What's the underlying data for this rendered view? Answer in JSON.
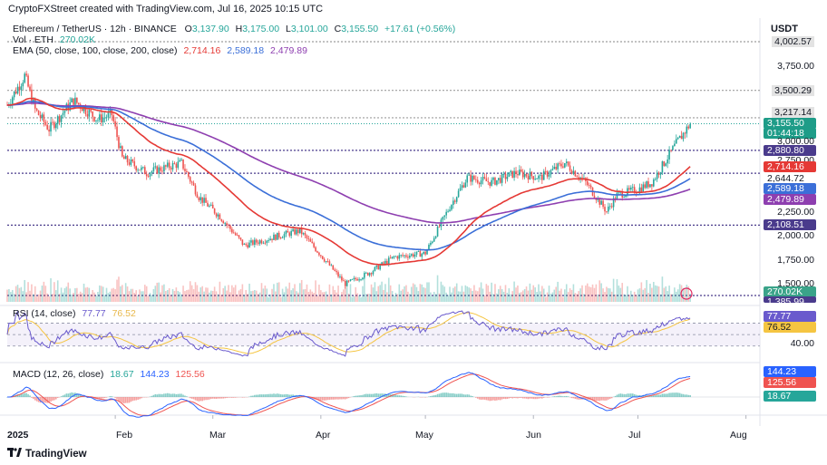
{
  "caption": "CryptoFXStreet created with TradingView.com, Jul 16, 2025 10:15 UTC",
  "currency": "USDT",
  "symbol": {
    "name": "Ethereum / TetherUS · 12h · BINANCE",
    "open_label": "O",
    "open": "3,137.90",
    "high_label": "H",
    "high": "3,175.00",
    "low_label": "L",
    "low": "3,101.00",
    "close_label": "C",
    "close": "3,155.50",
    "change": "+17.61 (+0.56%)"
  },
  "volume": {
    "label": "Vol · ETH",
    "value": "270.02K"
  },
  "ema": {
    "label": "EMA (50, close, 100, close, 200, close)",
    "v50": "2,714.16",
    "v100": "2,589.18",
    "v200": "2,479.89"
  },
  "rsi": {
    "label": "RSI (14, close)",
    "value": "77.77",
    "ma": "76.52"
  },
  "macd": {
    "label": "MACD (12, 26, close)",
    "hist": "18.67",
    "macd": "144.23",
    "signal": "125.56"
  },
  "price_axis": [
    "4,002.57",
    "3,750.00",
    "3,500.29",
    "3,217.14",
    "3,155.50",
    "01:44:18",
    "3,000.00",
    "2,880.80",
    "2,750.00",
    "2,714.16",
    "2,644.72",
    "2,589.18",
    "2,479.89",
    "2,250.00",
    "2,108.51",
    "2,000.00",
    "1,750.00",
    "1,500.00",
    "270.02K",
    "1,385.99"
  ],
  "rsi_axis": [
    "77.77",
    "76.52",
    "40.00"
  ],
  "macd_axis": [
    "144.23",
    "125.56",
    "18.67"
  ],
  "months": [
    "2025",
    "Feb",
    "Mar",
    "Apr",
    "May",
    "Jun",
    "Jul",
    "Aug"
  ],
  "brand": "TradingView",
  "colors": {
    "up": "#26a69a",
    "down": "#ef5350",
    "ema50": "#e53935",
    "ema100": "#3b6fd8",
    "ema200": "#8e3fb0",
    "level": "#4a3b8c",
    "rsi": "#6a5acd",
    "macd": "#2962ff",
    "signal": "#ef5350"
  },
  "chart_data": [
    {
      "type": "candlestick",
      "title": "Ethereum / TetherUS · 12h · BINANCE",
      "x_range": [
        "2025-01-01",
        "2025-07-16"
      ],
      "ylim": [
        1385.99,
        4002.57
      ],
      "horizontal_levels": [
        4002.57,
        3500.29,
        3217.14,
        2880.8,
        2644.72,
        2108.51
      ],
      "close_path": [
        {
          "x": "2025-01-01",
          "y": 3350
        },
        {
          "x": "2025-01-06",
          "y": 3650
        },
        {
          "x": "2025-01-09",
          "y": 3300
        },
        {
          "x": "2025-01-13",
          "y": 3100
        },
        {
          "x": "2025-01-20",
          "y": 3400
        },
        {
          "x": "2025-01-27",
          "y": 3200
        },
        {
          "x": "2025-01-31",
          "y": 3250
        },
        {
          "x": "2025-02-03",
          "y": 2800
        },
        {
          "x": "2025-02-10",
          "y": 2650
        },
        {
          "x": "2025-02-20",
          "y": 2750
        },
        {
          "x": "2025-02-25",
          "y": 2400
        },
        {
          "x": "2025-03-03",
          "y": 2200
        },
        {
          "x": "2025-03-10",
          "y": 1900
        },
        {
          "x": "2025-03-20",
          "y": 2000
        },
        {
          "x": "2025-03-26",
          "y": 2050
        },
        {
          "x": "2025-04-01",
          "y": 1800
        },
        {
          "x": "2025-04-08",
          "y": 1500
        },
        {
          "x": "2025-04-15",
          "y": 1620
        },
        {
          "x": "2025-04-22",
          "y": 1780
        },
        {
          "x": "2025-05-01",
          "y": 1820
        },
        {
          "x": "2025-05-08",
          "y": 2300
        },
        {
          "x": "2025-05-13",
          "y": 2600
        },
        {
          "x": "2025-05-20",
          "y": 2550
        },
        {
          "x": "2025-05-27",
          "y": 2650
        },
        {
          "x": "2025-06-03",
          "y": 2600
        },
        {
          "x": "2025-06-10",
          "y": 2750
        },
        {
          "x": "2025-06-16",
          "y": 2550
        },
        {
          "x": "2025-06-22",
          "y": 2250
        },
        {
          "x": "2025-06-25",
          "y": 2420
        },
        {
          "x": "2025-07-01",
          "y": 2480
        },
        {
          "x": "2025-07-05",
          "y": 2550
        },
        {
          "x": "2025-07-09",
          "y": 2780
        },
        {
          "x": "2025-07-12",
          "y": 2950
        },
        {
          "x": "2025-07-16",
          "y": 3155.5
        }
      ],
      "series": [
        {
          "name": "EMA 50",
          "last": 2714.16
        },
        {
          "name": "EMA 100",
          "last": 2589.18
        },
        {
          "name": "EMA 200",
          "last": 2479.89
        }
      ]
    },
    {
      "type": "line",
      "title": "RSI (14, close)",
      "ylim": [
        0,
        100
      ],
      "levels": [
        70,
        50,
        30
      ],
      "series": [
        {
          "name": "RSI",
          "last": 77.77
        },
        {
          "name": "MA",
          "last": 76.52
        }
      ]
    },
    {
      "type": "bar",
      "title": "MACD (12, 26, close)",
      "series": [
        {
          "name": "Histogram",
          "last": 18.67
        },
        {
          "name": "MACD",
          "last": 144.23
        },
        {
          "name": "Signal",
          "last": 125.56
        }
      ]
    }
  ]
}
